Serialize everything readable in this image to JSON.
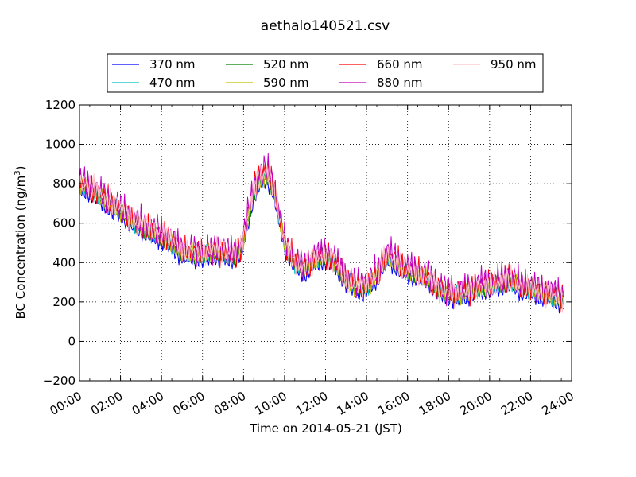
{
  "chart_data": {
    "type": "line",
    "title": "aethalo140521.csv",
    "xlabel": "Time on 2014-05-21 (JST)",
    "ylabel": "BC Concentration (ng/m",
    "ylabel_sup": "3",
    "ylabel_close": ")",
    "xlim": [
      0,
      24
    ],
    "ylim": [
      -200,
      1200
    ],
    "grid": true,
    "legend_position": "top",
    "x_ticks": [
      "00:00",
      "02:00",
      "04:00",
      "06:00",
      "08:00",
      "10:00",
      "12:00",
      "14:00",
      "16:00",
      "18:00",
      "20:00",
      "22:00",
      "24:00"
    ],
    "y_ticks": [
      "−200",
      "0",
      "200",
      "400",
      "600",
      "800",
      "1000",
      "1200"
    ],
    "anchors_x": [
      0,
      0.5,
      1,
      1.5,
      2,
      2.5,
      3,
      3.5,
      4,
      4.5,
      5,
      5.5,
      6,
      6.5,
      7,
      7.5,
      7.9,
      8.2,
      8.5,
      8.8,
      9.1,
      9.4,
      9.7,
      10,
      10.5,
      11,
      11.5,
      12,
      12.5,
      13,
      13.5,
      14,
      14.5,
      15,
      15.5,
      16,
      16.5,
      17,
      17.5,
      18,
      18.5,
      19,
      19.5,
      20,
      20.5,
      21,
      21.5,
      22,
      22.5,
      23,
      23.5,
      24
    ],
    "series": [
      {
        "name": "370 nm",
        "color": "#0000ff",
        "offset": -20,
        "amp": 45,
        "phase": 0.0,
        "values": [
          780,
          760,
          720,
          680,
          650,
          600,
          570,
          540,
          520,
          480,
          440,
          430,
          420,
          440,
          430,
          420,
          450,
          600,
          740,
          800,
          830,
          780,
          640,
          480,
          380,
          350,
          400,
          420,
          380,
          300,
          260,
          260,
          320,
          420,
          380,
          340,
          330,
          300,
          250,
          230,
          220,
          240,
          260,
          270,
          280,
          300,
          260,
          250,
          230,
          220,
          200,
          210
        ]
      },
      {
        "name": "470 nm",
        "color": "#00bfbf",
        "offset": 0,
        "amp": 55,
        "phase": 1.1,
        "values": [
          790,
          770,
          730,
          690,
          660,
          610,
          580,
          550,
          530,
          490,
          450,
          440,
          430,
          450,
          440,
          430,
          460,
          610,
          750,
          810,
          850,
          800,
          650,
          490,
          390,
          360,
          410,
          430,
          390,
          310,
          270,
          270,
          330,
          430,
          390,
          350,
          340,
          310,
          260,
          240,
          230,
          250,
          270,
          280,
          290,
          310,
          270,
          260,
          240,
          230,
          210,
          220
        ]
      },
      {
        "name": "520 nm",
        "color": "#008000",
        "offset": 10,
        "amp": 55,
        "phase": 2.3,
        "values": [
          780,
          760,
          720,
          680,
          650,
          600,
          570,
          540,
          520,
          480,
          440,
          430,
          420,
          440,
          430,
          420,
          450,
          600,
          740,
          800,
          830,
          780,
          640,
          480,
          380,
          350,
          400,
          420,
          380,
          300,
          260,
          260,
          320,
          420,
          380,
          340,
          330,
          300,
          250,
          230,
          220,
          240,
          260,
          270,
          280,
          300,
          260,
          250,
          230,
          220,
          200,
          210
        ]
      },
      {
        "name": "590 nm",
        "color": "#bfbf00",
        "offset": 15,
        "amp": 60,
        "phase": 3.1,
        "values": [
          780,
          760,
          720,
          680,
          650,
          600,
          570,
          540,
          520,
          480,
          440,
          430,
          420,
          440,
          430,
          420,
          450,
          600,
          740,
          800,
          830,
          780,
          640,
          480,
          380,
          350,
          400,
          420,
          380,
          300,
          260,
          260,
          320,
          420,
          380,
          340,
          330,
          300,
          250,
          230,
          220,
          240,
          260,
          270,
          280,
          300,
          260,
          250,
          230,
          220,
          200,
          210
        ]
      },
      {
        "name": "660 nm",
        "color": "#ff0000",
        "offset": 25,
        "amp": 90,
        "phase": 4.2,
        "values": [
          780,
          760,
          720,
          680,
          650,
          600,
          570,
          540,
          520,
          480,
          440,
          430,
          420,
          440,
          430,
          420,
          450,
          620,
          760,
          830,
          850,
          790,
          640,
          480,
          380,
          350,
          400,
          420,
          380,
          300,
          260,
          260,
          320,
          420,
          380,
          340,
          330,
          300,
          250,
          230,
          220,
          240,
          260,
          270,
          280,
          300,
          260,
          250,
          230,
          220,
          200,
          210
        ]
      },
      {
        "name": "880 nm",
        "color": "#bf00bf",
        "offset": 30,
        "amp": 95,
        "phase": 5.0,
        "values": [
          790,
          770,
          730,
          690,
          660,
          610,
          580,
          550,
          530,
          490,
          450,
          440,
          430,
          450,
          440,
          430,
          460,
          620,
          760,
          830,
          850,
          800,
          650,
          490,
          390,
          360,
          410,
          430,
          390,
          310,
          270,
          270,
          330,
          430,
          390,
          350,
          340,
          310,
          260,
          240,
          230,
          250,
          270,
          280,
          290,
          310,
          270,
          260,
          240,
          230,
          210,
          220
        ]
      },
      {
        "name": "950 nm",
        "color": "#ffc0cb",
        "offset": 20,
        "amp": 80,
        "phase": 6.3,
        "values": [
          790,
          770,
          730,
          690,
          660,
          610,
          580,
          550,
          530,
          490,
          450,
          440,
          430,
          450,
          440,
          430,
          460,
          610,
          750,
          810,
          840,
          790,
          640,
          480,
          380,
          350,
          400,
          420,
          380,
          300,
          260,
          260,
          320,
          420,
          380,
          340,
          330,
          300,
          250,
          230,
          220,
          240,
          260,
          270,
          280,
          300,
          260,
          250,
          230,
          220,
          200,
          210
        ]
      }
    ]
  }
}
